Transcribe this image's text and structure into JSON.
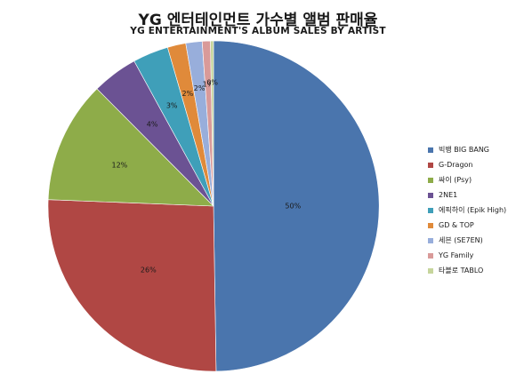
{
  "title": "YG 엔터테인먼트 가수별 앨범 판매율",
  "subtitle": "YG ENTERTAINMENT'S ALBUM SALES BY ARTIST",
  "chart_data": {
    "type": "pie",
    "title": "YG 엔터테인먼트 가수별 앨범 판매율",
    "subtitle": "YG ENTERTAINMENT'S ALBUM SALES BY ARTIST",
    "legend_position": "right",
    "slices": [
      {
        "label": "빅뱅 BIG BANG",
        "value": 50,
        "display": "50%",
        "color": "#4a75ad"
      },
      {
        "label": "G-Dragon",
        "value": 26,
        "display": "26%",
        "color": "#b04744"
      },
      {
        "label": "싸이 (Psy)",
        "value": 12,
        "display": "12%",
        "color": "#8eac49"
      },
      {
        "label": "2NE1",
        "value": 4.5,
        "display": "4%",
        "color": "#6b5293"
      },
      {
        "label": "에픽하이 (Epik High)",
        "value": 3.5,
        "display": "3%",
        "color": "#3f9fb9"
      },
      {
        "label": "GD & TOP",
        "value": 1.8,
        "display": "2%",
        "color": "#e08a3a"
      },
      {
        "label": "세븐 (SE7EN)",
        "value": 1.6,
        "display": "2%",
        "color": "#98aedb"
      },
      {
        "label": "YG Family",
        "value": 0.8,
        "display": "1%",
        "color": "#d99a99"
      },
      {
        "label": "타블로 TABLO",
        "value": 0.3,
        "display": "0%",
        "color": "#c6d59c"
      }
    ]
  }
}
